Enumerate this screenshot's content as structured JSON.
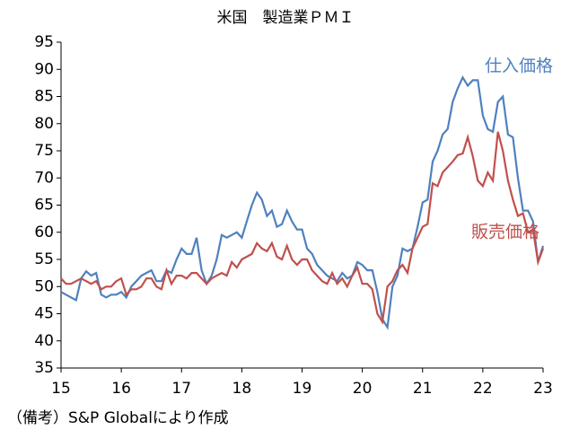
{
  "chart_data": {
    "type": "line",
    "title": "米国　製造業ＰＭＩ",
    "note": "（備考）S&P Globalにより作成",
    "x": [
      15,
      15.083,
      15.167,
      15.25,
      15.333,
      15.417,
      15.5,
      15.583,
      15.667,
      15.75,
      15.833,
      15.917,
      16,
      16.083,
      16.167,
      16.25,
      16.333,
      16.417,
      16.5,
      16.583,
      16.667,
      16.75,
      16.833,
      16.917,
      17,
      17.083,
      17.167,
      17.25,
      17.333,
      17.417,
      17.5,
      17.583,
      17.667,
      17.75,
      17.833,
      17.917,
      18,
      18.083,
      18.167,
      18.25,
      18.333,
      18.417,
      18.5,
      18.583,
      18.667,
      18.75,
      18.833,
      18.917,
      19,
      19.083,
      19.167,
      19.25,
      19.333,
      19.417,
      19.5,
      19.583,
      19.667,
      19.75,
      19.833,
      19.917,
      20,
      20.083,
      20.167,
      20.25,
      20.333,
      20.417,
      20.5,
      20.583,
      20.667,
      20.75,
      20.833,
      20.917,
      21,
      21.083,
      21.167,
      21.25,
      21.333,
      21.417,
      21.5,
      21.583,
      21.667,
      21.75,
      21.833,
      21.917,
      22,
      22.083,
      22.167,
      22.25,
      22.333,
      22.417,
      22.5,
      22.583,
      22.667,
      22.75,
      22.833,
      22.917,
      23
    ],
    "series": [
      {
        "name": "仕入価格",
        "color": "#4f81bd",
        "values": [
          49,
          48.5,
          48,
          47.5,
          51.5,
          52.8,
          52,
          52.5,
          48.5,
          48,
          48.5,
          48.5,
          49,
          48,
          50,
          51,
          52,
          52.5,
          53,
          51,
          51,
          53,
          52.5,
          55,
          57,
          56,
          56,
          59,
          53,
          50.5,
          52,
          55,
          59.5,
          59,
          59.5,
          60,
          59,
          62,
          65,
          67.3,
          66,
          63,
          64,
          61,
          61.5,
          64,
          62,
          60.5,
          60.5,
          57,
          56,
          54,
          53,
          52,
          51.5,
          51,
          52.5,
          51.5,
          52,
          54.5,
          54,
          53,
          53,
          49,
          44,
          42.5,
          50,
          52,
          57,
          56.5,
          57,
          61,
          65.5,
          66,
          73,
          75,
          78,
          79,
          84,
          86.5,
          88.5,
          87,
          88,
          88,
          81.5,
          79,
          78.5,
          84,
          85,
          78,
          77.5,
          70,
          64,
          64,
          62,
          54.5,
          57.5
        ]
      },
      {
        "name": "販売価格",
        "color": "#c0504d",
        "values": [
          51.5,
          50.5,
          50.5,
          51,
          51.5,
          51,
          50.5,
          51,
          49.5,
          50,
          50,
          51,
          51.5,
          48.5,
          49.5,
          49.5,
          50,
          51.5,
          51.5,
          50,
          49.5,
          53,
          50.5,
          52,
          52,
          51.5,
          52.5,
          52.5,
          51.5,
          50.5,
          51.5,
          52,
          52.5,
          52,
          54.5,
          53.5,
          55,
          55.5,
          56,
          58,
          57,
          56.5,
          58,
          55.5,
          55,
          57.5,
          55,
          54,
          55,
          55,
          53,
          52,
          51,
          50.5,
          52.5,
          50.5,
          51.5,
          50,
          52,
          53.5,
          50.5,
          50.5,
          49.5,
          45,
          43.5,
          50,
          51,
          53,
          54,
          52.5,
          57,
          59,
          61,
          61.5,
          69,
          68.5,
          71,
          72,
          73,
          74.2,
          74.5,
          77.5,
          74,
          69.5,
          68.5,
          71,
          69.5,
          78.5,
          75,
          69.5,
          66,
          63,
          63.5,
          60,
          60.5,
          54.5,
          57
        ]
      }
    ],
    "xlim": [
      15,
      23
    ],
    "xticks": [
      15,
      16,
      17,
      18,
      19,
      20,
      21,
      22,
      23
    ],
    "ylim": [
      35,
      95
    ],
    "yticks": [
      35,
      40,
      45,
      50,
      55,
      60,
      65,
      70,
      75,
      80,
      85,
      90,
      95
    ]
  }
}
